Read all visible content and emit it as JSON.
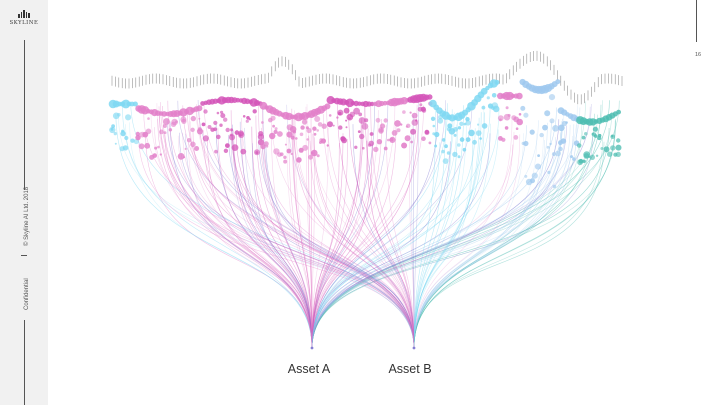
{
  "brand": {
    "name": "SKYLINE",
    "logo_icon": "skyline-bars-icon"
  },
  "sidebar": {
    "copyright": "© Skyline AI Ltd. 2018",
    "confidential": "Confidential"
  },
  "page_number": "16",
  "assets": [
    {
      "label": "Asset A",
      "color": "#9c7fd6"
    },
    {
      "label": "Asset B",
      "color": "#c964b8"
    }
  ],
  "palette": {
    "cyan": "#7fd8f2",
    "pink": "#e27fc9",
    "magenta": "#d455b8",
    "light_blue": "#9ec8ee",
    "teal": "#4dbdb1"
  }
}
